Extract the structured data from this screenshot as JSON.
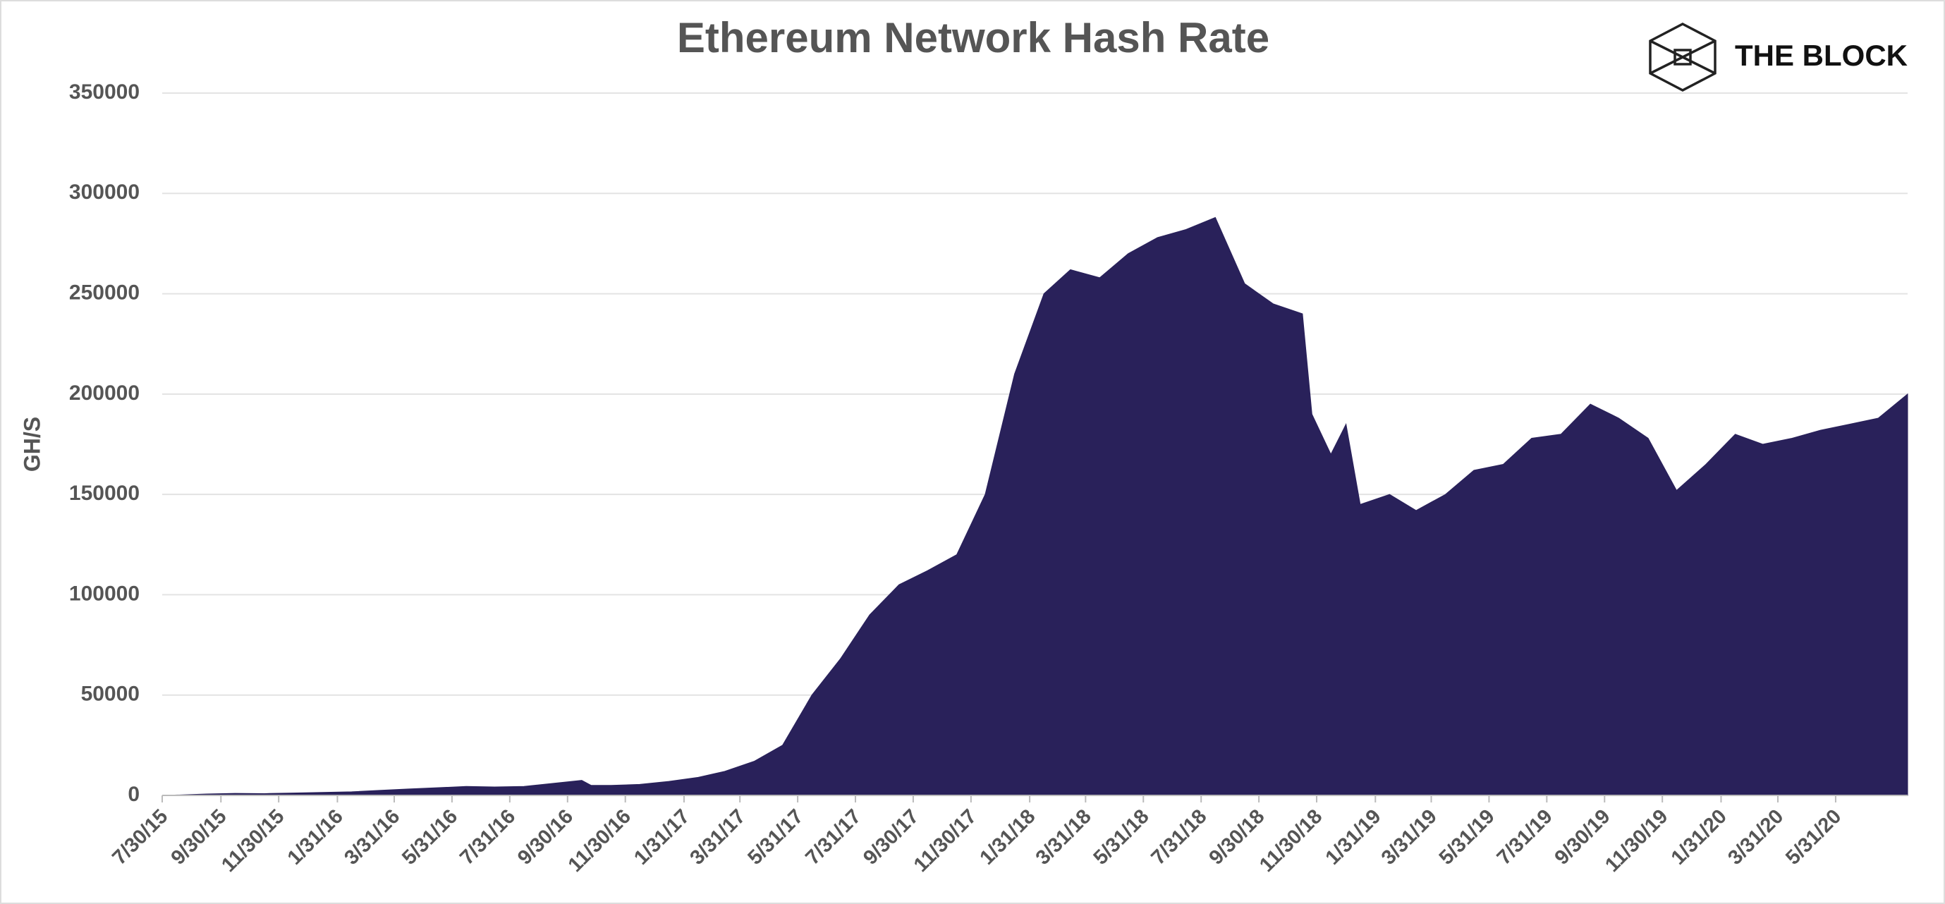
{
  "chart_data": {
    "type": "area",
    "title": "Ethereum Network Hash Rate",
    "brand": "THE BLOCK",
    "ylabel": "GH/S",
    "color": "#29215a",
    "grid": true,
    "xlim": [
      "7/30/15",
      "8/15/20"
    ],
    "ylim": [
      0,
      350000
    ],
    "yticks": [
      0,
      50000,
      100000,
      150000,
      200000,
      250000,
      300000,
      350000
    ],
    "xticks": [
      "7/30/15",
      "9/30/15",
      "11/30/15",
      "1/31/16",
      "3/31/16",
      "5/31/16",
      "7/31/16",
      "9/30/16",
      "11/30/16",
      "1/31/17",
      "3/31/17",
      "5/31/17",
      "7/31/17",
      "9/30/17",
      "11/30/17",
      "1/31/18",
      "3/31/18",
      "5/31/18",
      "7/31/18",
      "9/30/18",
      "11/30/18",
      "1/31/19",
      "3/31/19",
      "5/31/19",
      "7/31/19",
      "9/30/19",
      "11/30/19",
      "1/31/20",
      "3/31/20",
      "5/31/20"
    ],
    "x": [
      "7/30/15",
      "8/15/15",
      "9/15/15",
      "10/15/15",
      "11/15/15",
      "12/15/15",
      "1/15/16",
      "2/15/16",
      "3/15/16",
      "4/15/16",
      "5/15/16",
      "6/15/16",
      "7/15/16",
      "8/15/16",
      "9/15/16",
      "10/15/16",
      "10/25/16",
      "11/15/16",
      "12/15/16",
      "1/15/17",
      "2/15/17",
      "3/15/17",
      "4/15/17",
      "5/15/17",
      "6/15/17",
      "7/15/17",
      "8/15/17",
      "9/15/17",
      "10/15/17",
      "11/15/17",
      "12/15/17",
      "1/15/18",
      "2/15/18",
      "3/15/18",
      "4/15/18",
      "5/15/18",
      "6/15/18",
      "7/15/18",
      "8/15/18",
      "9/15/18",
      "10/15/18",
      "11/15/18",
      "11/25/18",
      "12/15/18",
      "12/31/18",
      "1/15/19",
      "2/15/19",
      "3/15/19",
      "4/15/19",
      "5/15/19",
      "6/15/19",
      "7/15/19",
      "8/15/19",
      "9/15/19",
      "10/15/19",
      "11/15/19",
      "12/15/19",
      "1/15/20",
      "2/15/20",
      "3/15/20",
      "4/15/20",
      "5/15/20",
      "6/15/20",
      "7/15/20",
      "8/15/20"
    ],
    "values": [
      0,
      200,
      700,
      1000,
      900,
      1200,
      1500,
      1800,
      2500,
      3200,
      3800,
      4500,
      4200,
      4500,
      6000,
      7500,
      5000,
      5000,
      5500,
      7000,
      9000,
      12000,
      17000,
      25000,
      50000,
      68000,
      90000,
      105000,
      112000,
      120000,
      150000,
      210000,
      250000,
      262000,
      258000,
      270000,
      278000,
      282000,
      288000,
      255000,
      245000,
      240000,
      190000,
      170000,
      185000,
      145000,
      150000,
      142000,
      150000,
      162000,
      165000,
      178000,
      180000,
      195000,
      188000,
      178000,
      152000,
      165000,
      180000,
      175000,
      178000,
      182000,
      185000,
      188000,
      200000
    ]
  }
}
